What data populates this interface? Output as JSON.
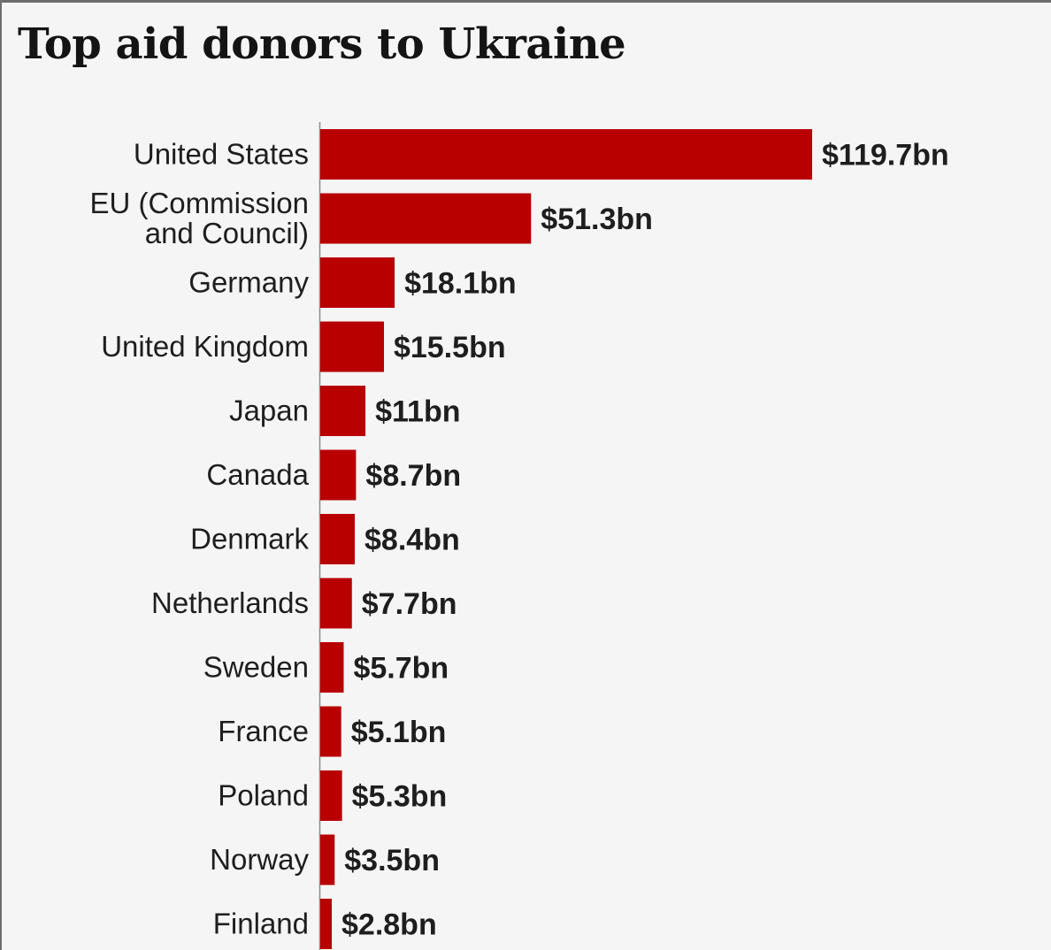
{
  "chart_data": {
    "type": "bar",
    "orientation": "horizontal",
    "title": "Top aid donors to Ukraine",
    "categories": [
      [
        "United States"
      ],
      [
        "EU (Commission",
        "and Council)"
      ],
      [
        "Germany"
      ],
      [
        "United Kingdom"
      ],
      [
        "Japan"
      ],
      [
        "Canada"
      ],
      [
        "Denmark"
      ],
      [
        "Netherlands"
      ],
      [
        "Sweden"
      ],
      [
        "France"
      ],
      [
        "Poland"
      ],
      [
        "Norway"
      ],
      [
        "Finland"
      ]
    ],
    "values": [
      119.7,
      51.3,
      18.1,
      15.5,
      11,
      8.7,
      8.4,
      7.7,
      5.7,
      5.1,
      5.3,
      3.5,
      2.8
    ],
    "value_labels": [
      "$119.7bn",
      "$51.3bn",
      "$18.1bn",
      "$15.5bn",
      "$11bn",
      "$8.7bn",
      "$8.4bn",
      "$7.7bn",
      "$5.7bn",
      "$5.1bn",
      "$5.3bn",
      "$3.5bn",
      "$2.8bn"
    ],
    "xlim": [
      0,
      119.7
    ],
    "grid": false,
    "legend": "none",
    "bar_color": "#b80000"
  }
}
